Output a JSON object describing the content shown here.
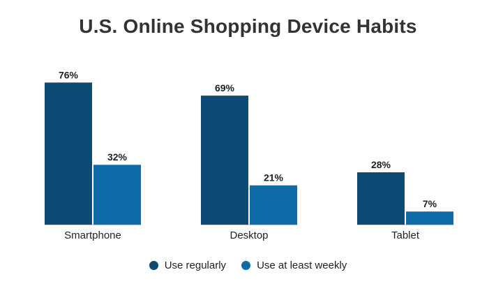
{
  "colors": {
    "use_regularly": "#0d4a74",
    "use_at_least_weekly": "#0e6ba8",
    "axis_line": "#cfcfcf",
    "text": "#222222"
  },
  "chart_data": {
    "type": "bar",
    "title": "U.S. Online Shopping Device Habits",
    "categories": [
      "Smartphone",
      "Desktop",
      "Tablet"
    ],
    "series": [
      {
        "name": "Use regularly",
        "values": [
          76,
          69,
          28
        ],
        "labels": [
          "76%",
          "69%",
          "28%"
        ]
      },
      {
        "name": "Use at least weekly",
        "values": [
          32,
          21,
          7
        ],
        "labels": [
          "32%",
          "21%",
          "7%"
        ]
      }
    ],
    "unit": "%",
    "ylim": [
      0,
      80
    ],
    "grid": false,
    "legend_position": "bottom-center"
  }
}
